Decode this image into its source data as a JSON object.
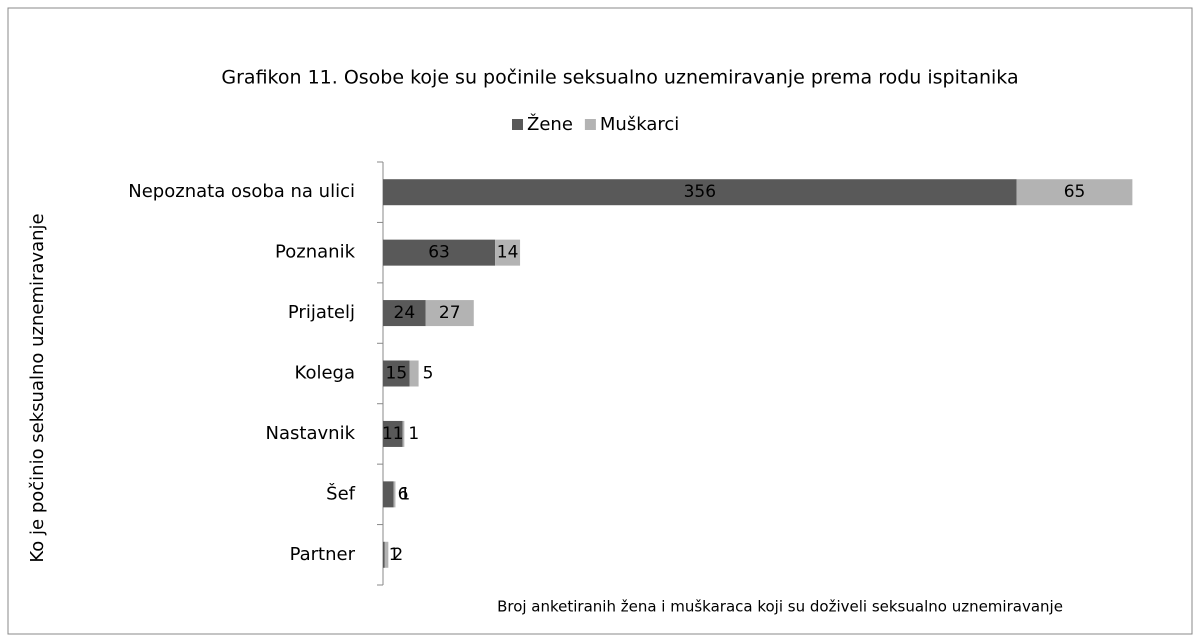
{
  "chart_data": {
    "type": "bar",
    "orientation": "horizontal",
    "stacked": true,
    "title": "Grafikon 11. Osobe koje su počinile seksualno uznemiravanje prema rodu ispitanika",
    "x_label": "Broj anketiranih žena i muškaraca koji su doživeli seksualno uznemiravanje",
    "y_label": "Ko je počinio seksualno uznemiravanje",
    "categories": [
      "Nepoznata osoba na ulici",
      "Poznanik",
      "Prijatelj",
      "Kolega",
      "Nastavnik",
      "Šef",
      "Partner"
    ],
    "series": [
      {
        "name": "Žene",
        "color": "#595959",
        "values": [
          356,
          63,
          24,
          15,
          11,
          6,
          1
        ]
      },
      {
        "name": "Muškarci",
        "color": "#b3b3b3",
        "values": [
          65,
          14,
          27,
          5,
          1,
          1,
          2
        ]
      }
    ],
    "xlim": [
      0,
      450
    ],
    "legend": "top"
  }
}
